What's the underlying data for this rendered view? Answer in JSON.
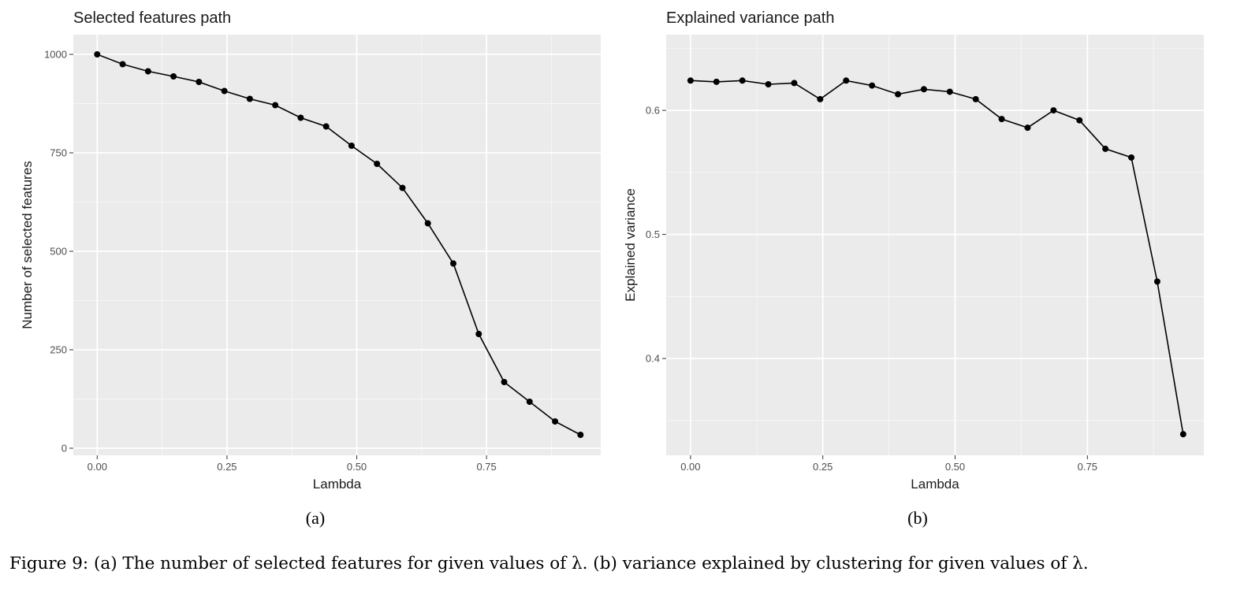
{
  "figure": {
    "caption": "Figure 9: (a) The number of selected features for given values of λ. (b) variance explained by clustering for given values of λ."
  },
  "chart_data": [
    {
      "type": "line",
      "panel_label": "(a)",
      "title": "Selected features path",
      "xlabel": "Lambda",
      "ylabel": "Number of selected features",
      "xlim": [
        -0.046,
        0.97
      ],
      "ylim": [
        -18,
        1050
      ],
      "xticks": [
        0,
        0.25,
        0.5,
        0.75
      ],
      "xtick_labels": [
        "0.00",
        "0.25",
        "0.50",
        "0.75"
      ],
      "yticks": [
        0,
        250,
        500,
        750,
        1000
      ],
      "ytick_labels": [
        "0",
        "250",
        "500",
        "750",
        "1000"
      ],
      "grid": true,
      "x": [
        0,
        0.049,
        0.098,
        0.147,
        0.196,
        0.245,
        0.294,
        0.343,
        0.392,
        0.441,
        0.49,
        0.539,
        0.588,
        0.637,
        0.686,
        0.735,
        0.784,
        0.833,
        0.882,
        0.931
      ],
      "values": [
        1000,
        975,
        957,
        944,
        930,
        907,
        887,
        871,
        839,
        817,
        768,
        722,
        661,
        571,
        469,
        290,
        168,
        118,
        68,
        34
      ]
    },
    {
      "type": "line",
      "panel_label": "(b)",
      "title": "Explained variance path",
      "xlabel": "Lambda",
      "ylabel": "Explained variance",
      "xlim": [
        -0.046,
        0.97
      ],
      "ylim": [
        0.322,
        0.661
      ],
      "xticks": [
        0,
        0.25,
        0.5,
        0.75
      ],
      "xtick_labels": [
        "0.00",
        "0.25",
        "0.50",
        "0.75"
      ],
      "yticks": [
        0.4,
        0.5,
        0.6
      ],
      "ytick_labels": [
        "0.4",
        "0.5",
        "0.6"
      ],
      "grid": true,
      "x": [
        0,
        0.049,
        0.098,
        0.147,
        0.196,
        0.245,
        0.294,
        0.343,
        0.392,
        0.441,
        0.49,
        0.539,
        0.588,
        0.637,
        0.686,
        0.735,
        0.784,
        0.833,
        0.882,
        0.931
      ],
      "values": [
        0.624,
        0.623,
        0.624,
        0.621,
        0.622,
        0.609,
        0.624,
        0.62,
        0.613,
        0.617,
        0.615,
        0.609,
        0.593,
        0.586,
        0.6,
        0.592,
        0.569,
        0.562,
        0.462,
        0.339
      ]
    }
  ]
}
